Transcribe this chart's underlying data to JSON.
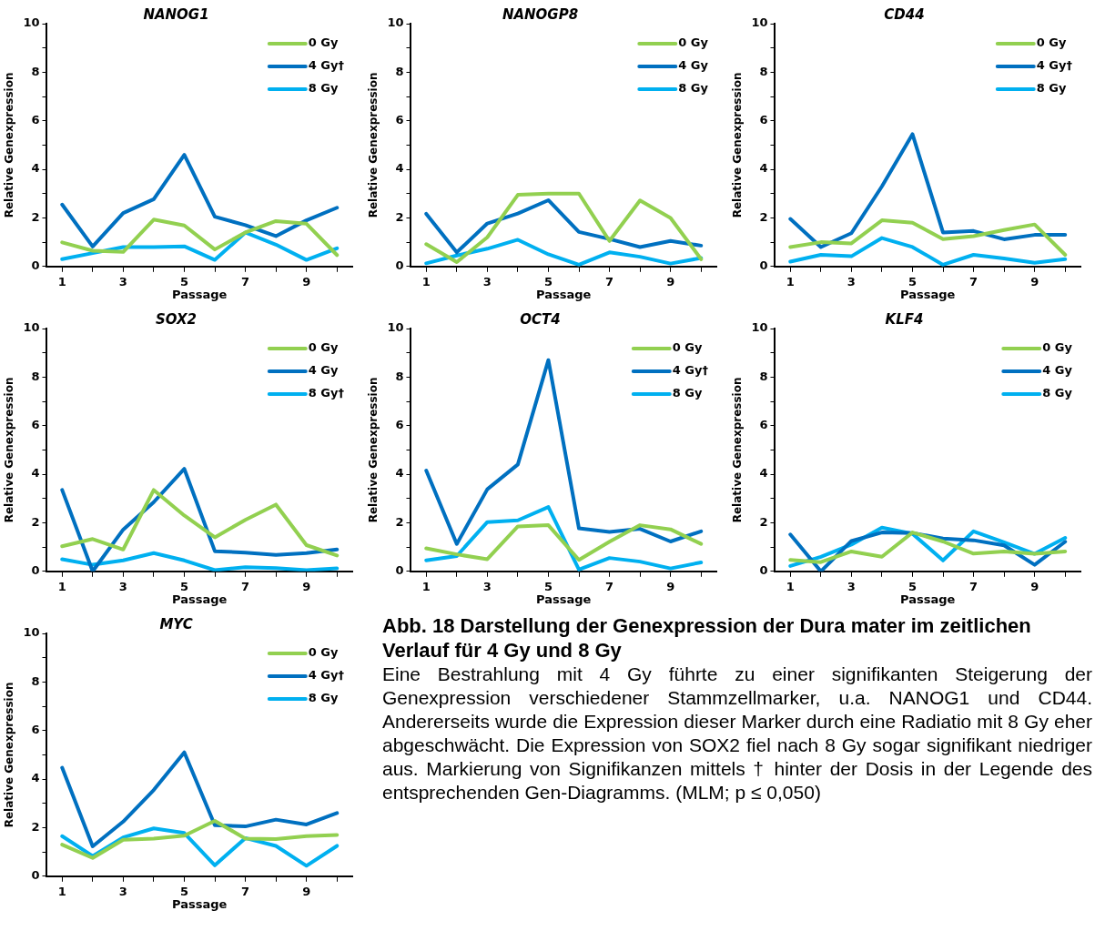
{
  "chart_data": [
    {
      "type": "line",
      "title": "NANOG1",
      "xlabel": "Passage",
      "ylabel": "Relative Genexpression",
      "categories": [
        "1",
        null,
        "3",
        null,
        "5",
        null,
        "7",
        null,
        "9",
        null
      ],
      "ylim": [
        0,
        10
      ],
      "yticks": [
        0,
        {
          "value": 1,
          "label": null
        },
        2,
        {
          "value": 3,
          "label": null
        },
        4,
        {
          "value": 5,
          "label": null
        },
        6,
        {
          "value": 7,
          "label": null
        },
        8,
        {
          "value": 9,
          "label": null
        },
        10
      ],
      "legend": "top right",
      "series": [
        {
          "name": "0 Gy",
          "color": "#92d050",
          "values": [
            0.99,
            0.65,
            0.6,
            1.93,
            1.69,
            0.7,
            1.4,
            1.87,
            1.76,
            0.47
          ]
        },
        {
          "name": "4 Gy†",
          "color": "#0070c0",
          "values": [
            2.55,
            0.82,
            2.2,
            2.77,
            4.6,
            2.05,
            1.7,
            1.25,
            1.9,
            2.42
          ]
        },
        {
          "name": "8 Gy",
          "color": "#00b0f0",
          "values": [
            0.3,
            0.55,
            0.8,
            0.8,
            0.83,
            0.27,
            1.4,
            0.9,
            0.27,
            0.75
          ]
        }
      ]
    },
    {
      "type": "line",
      "title": "NANOGP8",
      "xlabel": "Passage",
      "ylabel": "Relative Genexpression",
      "categories": [
        "1",
        null,
        "3",
        null,
        "5",
        null,
        "7",
        null,
        "9",
        null
      ],
      "ylim": [
        0,
        10
      ],
      "yticks": [
        0,
        {
          "value": 1,
          "label": null
        },
        2,
        {
          "value": 3,
          "label": null
        },
        4,
        {
          "value": 5,
          "label": null
        },
        6,
        {
          "value": 7,
          "label": null
        },
        8,
        {
          "value": 9,
          "label": null
        },
        10
      ],
      "legend": "top right",
      "series": [
        {
          "name": "0 Gy",
          "color": "#92d050",
          "values": [
            0.92,
            0.18,
            1.2,
            2.95,
            3.0,
            3.0,
            1.05,
            2.72,
            2.0,
            0.3
          ]
        },
        {
          "name": "4 Gy",
          "color": "#0070c0",
          "values": [
            2.17,
            0.58,
            1.77,
            2.18,
            2.73,
            1.42,
            1.13,
            0.8,
            1.05,
            0.86
          ]
        },
        {
          "name": "8 Gy",
          "color": "#00b0f0",
          "values": [
            0.13,
            0.45,
            0.73,
            1.1,
            0.5,
            0.07,
            0.58,
            0.4,
            0.12,
            0.35
          ]
        }
      ]
    },
    {
      "type": "line",
      "title": "CD44",
      "xlabel": "Passage",
      "ylabel": "Relative Genexpression",
      "categories": [
        "1",
        null,
        "3",
        null,
        "5",
        null,
        "7",
        null,
        "9",
        null
      ],
      "ylim": [
        0,
        10
      ],
      "yticks": [
        0,
        {
          "value": 1,
          "label": null
        },
        2,
        {
          "value": 3,
          "label": null
        },
        4,
        {
          "value": 5,
          "label": null
        },
        6,
        {
          "value": 7,
          "label": null
        },
        8,
        {
          "value": 9,
          "label": null
        },
        10
      ],
      "legend": "top right",
      "series": [
        {
          "name": "0 Gy",
          "color": "#92d050",
          "values": [
            0.8,
            1.0,
            0.95,
            1.9,
            1.8,
            1.13,
            1.25,
            1.5,
            1.73,
            0.48
          ]
        },
        {
          "name": "4 Gy†",
          "color": "#0070c0",
          "values": [
            1.96,
            0.8,
            1.37,
            3.3,
            5.45,
            1.4,
            1.46,
            1.12,
            1.3,
            1.3
          ]
        },
        {
          "name": "8 Gy",
          "color": "#00b0f0",
          "values": [
            0.2,
            0.48,
            0.42,
            1.17,
            0.8,
            0.07,
            0.48,
            0.33,
            0.15,
            0.3
          ]
        }
      ]
    },
    {
      "type": "line",
      "title": "SOX2",
      "xlabel": "Passage",
      "ylabel": "Relative Genexpression",
      "categories": [
        "1",
        null,
        "3",
        null,
        "5",
        null,
        "7",
        null,
        "9",
        null
      ],
      "ylim": [
        0,
        10
      ],
      "yticks": [
        0,
        {
          "value": 1,
          "label": null
        },
        2,
        {
          "value": 3,
          "label": null
        },
        4,
        {
          "value": 5,
          "label": null
        },
        6,
        {
          "value": 7,
          "label": null
        },
        8,
        {
          "value": 9,
          "label": null
        },
        10
      ],
      "legend": "top right",
      "series": [
        {
          "name": "0 Gy",
          "color": "#92d050",
          "values": [
            1.03,
            1.33,
            0.9,
            3.35,
            2.3,
            1.4,
            2.12,
            2.75,
            1.08,
            0.65
          ]
        },
        {
          "name": "4 Gy",
          "color": "#0070c0",
          "values": [
            3.35,
            0.0,
            1.72,
            2.85,
            4.22,
            0.83,
            0.77,
            0.68,
            0.75,
            0.9
          ]
        },
        {
          "name": "8 Gy†",
          "color": "#00b0f0",
          "values": [
            0.5,
            0.27,
            0.45,
            0.75,
            0.45,
            0.05,
            0.17,
            0.13,
            0.05,
            0.12
          ]
        }
      ]
    },
    {
      "type": "line",
      "title": "OCT4",
      "xlabel": "Passage",
      "ylabel": "Relative Genexpression",
      "categories": [
        "1",
        null,
        "3",
        null,
        "5",
        null,
        "7",
        null,
        "9",
        null
      ],
      "ylim": [
        0,
        10
      ],
      "yticks": [
        0,
        {
          "value": 1,
          "label": null
        },
        2,
        {
          "value": 3,
          "label": null
        },
        4,
        {
          "value": 5,
          "label": null
        },
        6,
        {
          "value": 7,
          "label": null
        },
        8,
        {
          "value": 9,
          "label": null
        },
        10
      ],
      "legend": "top right",
      "series": [
        {
          "name": "0 Gy",
          "color": "#92d050",
          "values": [
            0.95,
            0.7,
            0.5,
            1.85,
            1.9,
            0.47,
            1.22,
            1.9,
            1.73,
            1.13
          ]
        },
        {
          "name": "4 Gy†",
          "color": "#0070c0",
          "values": [
            4.15,
            1.13,
            3.38,
            4.4,
            8.7,
            1.77,
            1.62,
            1.75,
            1.23,
            1.65
          ]
        },
        {
          "name": "8 Gy",
          "color": "#00b0f0",
          "values": [
            0.45,
            0.63,
            2.03,
            2.1,
            2.65,
            0.07,
            0.55,
            0.4,
            0.12,
            0.37
          ]
        }
      ]
    },
    {
      "type": "line",
      "title": "KLF4",
      "xlabel": "Passage",
      "ylabel": "Relative Genexpression",
      "categories": [
        "1",
        null,
        "3",
        null,
        "5",
        null,
        "7",
        null,
        "9",
        null
      ],
      "ylim": [
        0,
        10
      ],
      "yticks": [
        0,
        {
          "value": 1,
          "label": null
        },
        2,
        {
          "value": 3,
          "label": null
        },
        4,
        {
          "value": 5,
          "label": null
        },
        6,
        {
          "value": 7,
          "label": null
        },
        8,
        {
          "value": 9,
          "label": null
        },
        10
      ],
      "legend": "top right",
      "series": [
        {
          "name": "0 Gy",
          "color": "#92d050",
          "values": [
            0.47,
            0.38,
            0.82,
            0.6,
            1.6,
            1.23,
            0.73,
            0.82,
            0.72,
            0.82
          ]
        },
        {
          "name": "4 Gy",
          "color": "#0070c0",
          "values": [
            1.52,
            0.0,
            1.25,
            1.6,
            1.58,
            1.35,
            1.28,
            1.07,
            0.27,
            1.22
          ]
        },
        {
          "name": "8 Gy",
          "color": "#00b0f0",
          "values": [
            0.22,
            0.6,
            1.1,
            1.8,
            1.55,
            0.45,
            1.65,
            1.2,
            0.72,
            1.38
          ]
        }
      ]
    },
    {
      "type": "line",
      "title": "MYC",
      "xlabel": "Passage",
      "ylabel": "Relative Genexpression",
      "categories": [
        "1",
        null,
        "3",
        null,
        "5",
        null,
        "7",
        null,
        "9",
        null
      ],
      "ylim": [
        0,
        10
      ],
      "yticks": [
        0,
        {
          "value": 1,
          "label": null
        },
        2,
        {
          "value": 3,
          "label": null
        },
        4,
        {
          "value": 5,
          "label": null
        },
        6,
        {
          "value": 7,
          "label": null
        },
        8,
        {
          "value": 9,
          "label": null
        },
        10
      ],
      "legend": "top right",
      "series": [
        {
          "name": "0 Gy",
          "color": "#92d050",
          "values": [
            1.3,
            0.75,
            1.5,
            1.55,
            1.67,
            2.28,
            1.55,
            1.53,
            1.65,
            1.7
          ]
        },
        {
          "name": "4 Gy†",
          "color": "#0070c0",
          "values": [
            4.47,
            1.23,
            2.25,
            3.55,
            5.1,
            2.1,
            2.05,
            2.33,
            2.13,
            2.6
          ]
        },
        {
          "name": "8 Gy",
          "color": "#00b0f0",
          "values": [
            1.65,
            0.83,
            1.6,
            1.97,
            1.78,
            0.45,
            1.57,
            1.25,
            0.43,
            1.25
          ]
        }
      ]
    },
    {
      "type": "other",
      "title": "Abb. 18 Darstellung der Genexpression der Dura mater im zeitlichen Verlauf für 4 Gy und 8 Gy",
      "annotations": [
        "Eine Bestrahlung mit 4 Gy führte zu einer signifikanten Steigerung der Genexpression verschiedener Stammzellmarker, u.a. NANOG1 und CD44. Andererseits wurde die Expression dieser Marker durch eine Radiatio mit 8 Gy eher abgeschwächt. Die Expression von SOX2 fiel nach 8 Gy sogar signifikant niedriger aus. Markierung von Signifikanzen mittels † hinter der Dosis in der Legende des entsprechenden Gen-Diagramms. (MLM; p ≤ 0,050)"
      ]
    }
  ]
}
